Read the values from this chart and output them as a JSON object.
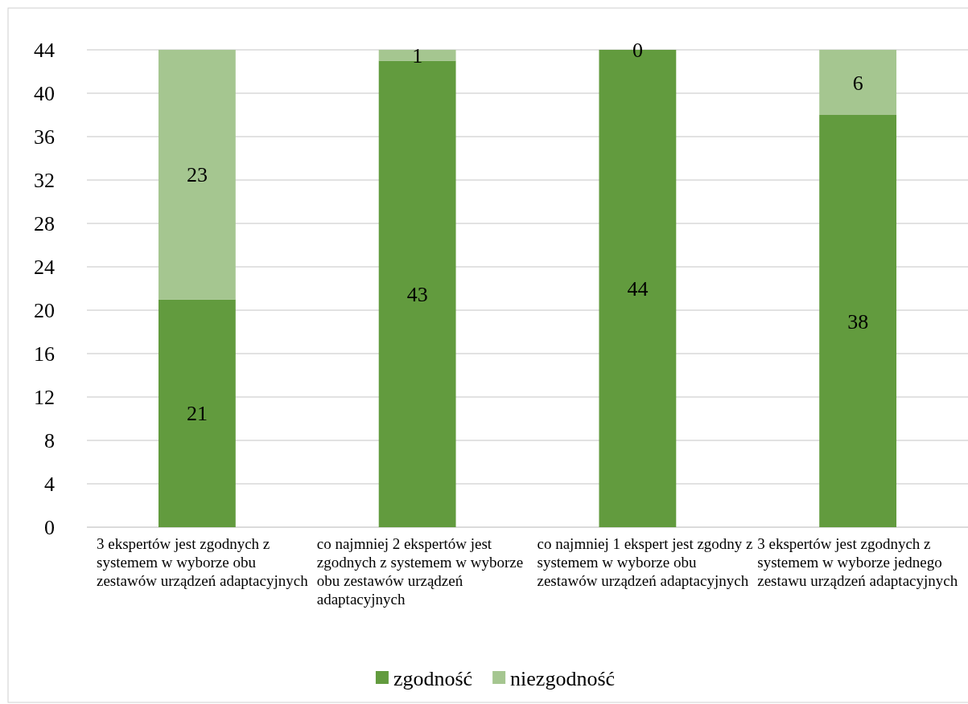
{
  "chart_data": {
    "type": "bar",
    "stacked": true,
    "categories": [
      "3 ekspertów jest zgodnych z systemem w wyborze obu zestawów urządzeń adaptacyjnych",
      "co najmniej 2 ekspertów jest zgodnych z systemem w wyborze obu zestawów urządzeń adaptacyjnych",
      "co najmniej 1 ekspert jest zgodny z systemem w wyborze obu zestawów urządzeń adaptacyjnych",
      "3 ekspertów jest zgodnych z systemem w wyborze jednego zestawu urządzeń adaptacyjnych"
    ],
    "series": [
      {
        "name": "zgodność",
        "color": "#629b3e",
        "values": [
          21,
          43,
          44,
          38
        ]
      },
      {
        "name": "niezgodność",
        "color": "#a5c690",
        "values": [
          23,
          1,
          0,
          6
        ]
      }
    ],
    "ylim": [
      0,
      44
    ],
    "yticks": [
      0,
      4,
      8,
      12,
      16,
      20,
      24,
      28,
      32,
      36,
      40,
      44
    ],
    "grid": "y",
    "legend": "bottom",
    "data_labels": true
  }
}
